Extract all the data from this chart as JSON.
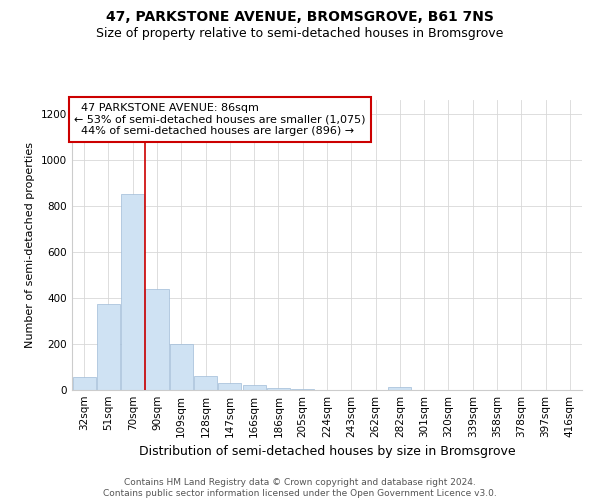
{
  "title": "47, PARKSTONE AVENUE, BROMSGROVE, B61 7NS",
  "subtitle": "Size of property relative to semi-detached houses in Bromsgrove",
  "xlabel": "Distribution of semi-detached houses by size in Bromsgrove",
  "ylabel": "Number of semi-detached properties",
  "footer_line1": "Contains HM Land Registry data © Crown copyright and database right 2024.",
  "footer_line2": "Contains public sector information licensed under the Open Government Licence v3.0.",
  "categories": [
    "32sqm",
    "51sqm",
    "70sqm",
    "90sqm",
    "109sqm",
    "128sqm",
    "147sqm",
    "166sqm",
    "186sqm",
    "205sqm",
    "224sqm",
    "243sqm",
    "262sqm",
    "282sqm",
    "301sqm",
    "320sqm",
    "339sqm",
    "358sqm",
    "378sqm",
    "397sqm",
    "416sqm"
  ],
  "values": [
    57,
    375,
    850,
    440,
    198,
    62,
    30,
    22,
    10,
    6,
    2,
    2,
    2,
    12,
    0,
    0,
    0,
    0,
    0,
    0,
    0
  ],
  "bar_color": "#cfe2f3",
  "bar_edge_color": "#a0bcd8",
  "property_label": "47 PARKSTONE AVENUE: 86sqm",
  "smaller_pct": 53,
  "smaller_count": 1075,
  "larger_pct": 44,
  "larger_count": 896,
  "vline_x_index": 2.52,
  "annotation_box_color": "#ffffff",
  "annotation_box_edge": "#cc0000",
  "vline_color": "#cc0000",
  "ylim": [
    0,
    1260
  ],
  "yticks": [
    0,
    200,
    400,
    600,
    800,
    1000,
    1200
  ],
  "title_fontsize": 10,
  "subtitle_fontsize": 9,
  "xlabel_fontsize": 9,
  "ylabel_fontsize": 8,
  "tick_fontsize": 7.5,
  "annotation_fontsize": 8,
  "footer_fontsize": 6.5
}
